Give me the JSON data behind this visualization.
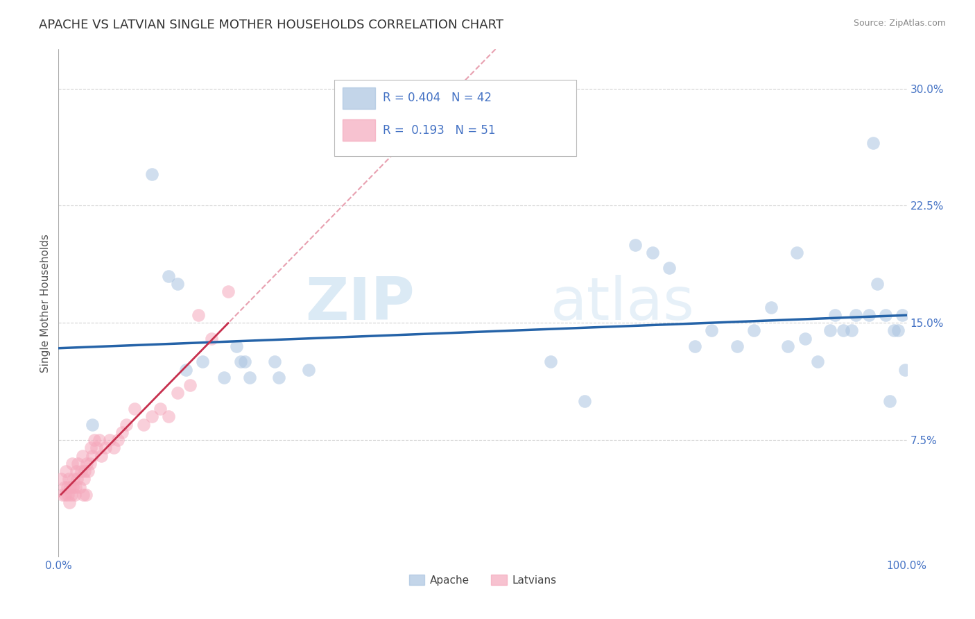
{
  "title": "APACHE VS LATVIAN SINGLE MOTHER HOUSEHOLDS CORRELATION CHART",
  "source_text": "Source: ZipAtlas.com",
  "ylabel": "Single Mother Households",
  "xlim": [
    0.0,
    1.0
  ],
  "ylim": [
    0.0,
    0.325
  ],
  "xticks": [
    0.0,
    0.25,
    0.5,
    0.75,
    1.0
  ],
  "xticklabels": [
    "0.0%",
    "",
    "",
    "",
    "100.0%"
  ],
  "yticks": [
    0.075,
    0.15,
    0.225,
    0.3
  ],
  "yticklabels": [
    "7.5%",
    "15.0%",
    "22.5%",
    "30.0%"
  ],
  "watermark_zip": "ZIP",
  "watermark_atlas": "atlas",
  "apache_color": "#aac4e0",
  "apache_edge_color": "#aac4e0",
  "latvian_color": "#f5a8bc",
  "latvian_edge_color": "#f5a8bc",
  "apache_line_color": "#2563a8",
  "latvian_solid_color": "#c7304e",
  "diagonal_dashed_color": "#e8a0b0",
  "grid_color": "#cccccc",
  "tick_color": "#4472c4",
  "title_color": "#333333",
  "source_color": "#888888",
  "ylabel_color": "#555555",
  "apache_x": [
    0.04,
    0.11,
    0.13,
    0.14,
    0.15,
    0.17,
    0.195,
    0.21,
    0.215,
    0.22,
    0.225,
    0.255,
    0.26,
    0.295,
    0.58,
    0.62,
    0.68,
    0.7,
    0.72,
    0.75,
    0.77,
    0.8,
    0.82,
    0.84,
    0.86,
    0.87,
    0.88,
    0.895,
    0.91,
    0.915,
    0.925,
    0.935,
    0.94,
    0.955,
    0.96,
    0.965,
    0.975,
    0.98,
    0.985,
    0.99,
    0.995,
    0.998
  ],
  "apache_y": [
    0.085,
    0.245,
    0.18,
    0.175,
    0.12,
    0.125,
    0.115,
    0.135,
    0.125,
    0.125,
    0.115,
    0.125,
    0.115,
    0.12,
    0.125,
    0.1,
    0.2,
    0.195,
    0.185,
    0.135,
    0.145,
    0.135,
    0.145,
    0.16,
    0.135,
    0.195,
    0.14,
    0.125,
    0.145,
    0.155,
    0.145,
    0.145,
    0.155,
    0.155,
    0.265,
    0.175,
    0.155,
    0.1,
    0.145,
    0.145,
    0.155,
    0.12
  ],
  "latvian_x": [
    0.003,
    0.005,
    0.007,
    0.008,
    0.009,
    0.01,
    0.011,
    0.012,
    0.013,
    0.014,
    0.015,
    0.016,
    0.017,
    0.018,
    0.019,
    0.02,
    0.021,
    0.022,
    0.023,
    0.025,
    0.027,
    0.028,
    0.029,
    0.03,
    0.031,
    0.032,
    0.033,
    0.035,
    0.037,
    0.038,
    0.04,
    0.042,
    0.045,
    0.048,
    0.05,
    0.055,
    0.06,
    0.065,
    0.07,
    0.075,
    0.08,
    0.09,
    0.1,
    0.11,
    0.12,
    0.13,
    0.14,
    0.155,
    0.165,
    0.18,
    0.2
  ],
  "latvian_y": [
    0.05,
    0.04,
    0.045,
    0.04,
    0.055,
    0.045,
    0.04,
    0.05,
    0.035,
    0.045,
    0.04,
    0.06,
    0.045,
    0.05,
    0.04,
    0.045,
    0.055,
    0.05,
    0.06,
    0.045,
    0.055,
    0.065,
    0.04,
    0.05,
    0.055,
    0.04,
    0.06,
    0.055,
    0.06,
    0.07,
    0.065,
    0.075,
    0.07,
    0.075,
    0.065,
    0.07,
    0.075,
    0.07,
    0.075,
    0.08,
    0.085,
    0.095,
    0.085,
    0.09,
    0.095,
    0.09,
    0.105,
    0.11,
    0.155,
    0.14,
    0.17
  ],
  "title_fontsize": 13,
  "axis_label_fontsize": 11,
  "tick_fontsize": 11,
  "legend_fontsize": 13,
  "marker_size": 180,
  "marker_alpha": 0.55
}
